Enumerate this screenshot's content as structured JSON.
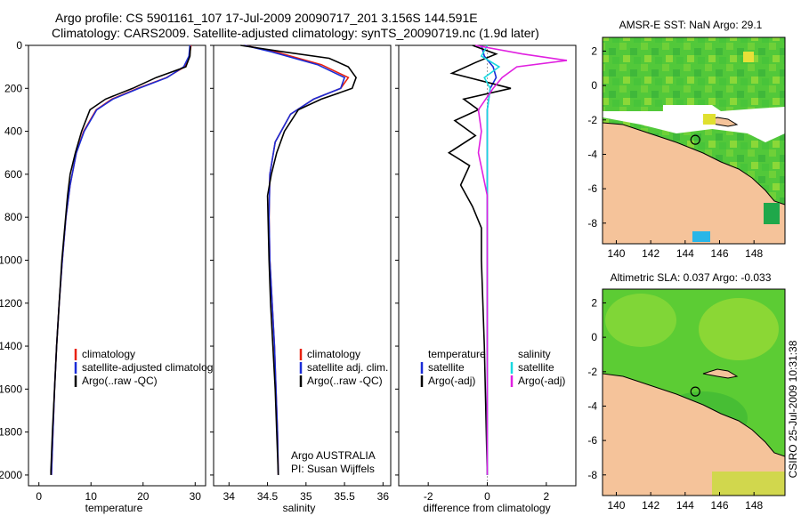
{
  "header": {
    "line1": "Argo profile: CS 5901161_107 17-Jul-2009 20090717_201 3.156S 144.591E",
    "line2": "Climatology: CARS2009. Satellite-adjusted climatology: synTS_20090719.nc (1.9d later)"
  },
  "colors": {
    "climatology": "#e8210f",
    "satellite": "#1a2cd6",
    "argo": "#000000",
    "salinity_satellite": "#18d8e0",
    "salinity_argo": "#e020e0",
    "land": "#f5c39a",
    "sea_green": "#2fbf2f"
  },
  "side": {
    "sst_title": "AMSR-E SST: NaN Argo: 29.1",
    "sla_title": "Altimetric SLA: 0.037 Argo: -0.033",
    "csiro_stamp": "CSIRO 25-Jul-2009 10:31:38"
  },
  "legends": {
    "temperature": [
      "climatology",
      "satellite-adjusted climatology",
      "Argo(..raw -QC)"
    ],
    "salinity": [
      "climatology",
      "satellite adj. clim.",
      "Argo(..raw -QC)"
    ],
    "diff_t_header": "temperature",
    "diff_s_header": "salinity",
    "diff_t": [
      "satellite",
      "Argo(-adj)"
    ],
    "diff_s": [
      "satellite",
      "Argo(-adj)"
    ]
  },
  "credit": {
    "line1": "Argo AUSTRALIA",
    "line2": "PI: Susan Wijffels"
  },
  "chart_data": [
    {
      "type": "line",
      "panel": "temperature",
      "xlabel": "temperature",
      "ylabel": "",
      "xlim": [
        -2,
        32
      ],
      "ylim": [
        2050,
        0
      ],
      "xticks": [
        0,
        10,
        20,
        30
      ],
      "yticks": [
        0,
        200,
        400,
        600,
        800,
        1000,
        1200,
        1400,
        1600,
        1800,
        2000
      ],
      "series": [
        {
          "name": "climatology",
          "color_key": "climatology",
          "x": [
            29.2,
            28.9,
            28.0,
            24.5,
            19.0,
            14.0,
            11.0,
            8.6,
            7.2,
            6.0,
            5.2,
            4.5,
            3.9,
            3.4,
            3.0,
            2.7,
            2.4
          ],
          "y": [
            0,
            50,
            100,
            150,
            200,
            250,
            300,
            400,
            500,
            650,
            800,
            1000,
            1200,
            1400,
            1600,
            1800,
            2000
          ]
        },
        {
          "name": "satellite-adjusted climatology",
          "color_key": "satellite",
          "x": [
            29.0,
            28.8,
            27.8,
            24.6,
            19.2,
            14.2,
            11.1,
            8.7,
            7.2,
            6.0,
            5.2,
            4.5,
            3.9,
            3.4,
            3.0,
            2.7,
            2.4
          ],
          "y": [
            0,
            50,
            100,
            150,
            200,
            250,
            300,
            400,
            500,
            650,
            800,
            1000,
            1200,
            1400,
            1600,
            1800,
            2000
          ]
        },
        {
          "name": "Argo(..raw -QC)",
          "color_key": "argo",
          "x": [
            29.1,
            29.0,
            28.2,
            22.5,
            18.0,
            12.8,
            9.8,
            8.2,
            7.0,
            6.0,
            5.5,
            4.4,
            3.9,
            3.4,
            3.0,
            2.6,
            2.3,
            2.3
          ],
          "y": [
            5,
            50,
            100,
            150,
            200,
            250,
            300,
            400,
            500,
            600,
            700,
            1000,
            1200,
            1400,
            1600,
            1800,
            1980,
            2000
          ]
        }
      ]
    },
    {
      "type": "line",
      "panel": "salinity",
      "xlabel": "salinity",
      "ylabel": "",
      "xlim": [
        33.8,
        36.1
      ],
      "ylim": [
        2050,
        0
      ],
      "xticks": [
        34,
        34.5,
        35,
        35.5,
        36
      ],
      "yticks": [
        0,
        200,
        400,
        600,
        800,
        1000,
        1200,
        1400,
        1600,
        1800,
        2000
      ],
      "series": [
        {
          "name": "climatology",
          "color_key": "climatology",
          "x": [
            34.2,
            34.6,
            35.2,
            35.55,
            35.45,
            35.1,
            34.8,
            34.6,
            34.53,
            34.52,
            34.53,
            34.56,
            34.59,
            34.61,
            34.63,
            34.64
          ],
          "y": [
            0,
            30,
            90,
            150,
            200,
            250,
            320,
            450,
            600,
            800,
            1000,
            1200,
            1400,
            1600,
            1800,
            2000
          ]
        },
        {
          "name": "satellite adj. clim.",
          "color_key": "satellite",
          "x": [
            34.2,
            34.55,
            35.15,
            35.5,
            35.45,
            35.1,
            34.8,
            34.6,
            34.53,
            34.52,
            34.53,
            34.56,
            34.59,
            34.61,
            34.63,
            34.64
          ],
          "y": [
            0,
            30,
            90,
            150,
            200,
            250,
            320,
            450,
            600,
            800,
            1000,
            1200,
            1400,
            1600,
            1800,
            2000
          ]
        },
        {
          "name": "Argo(..raw -QC)",
          "color_key": "argo",
          "x": [
            34.15,
            34.7,
            35.3,
            35.55,
            35.65,
            35.6,
            35.2,
            34.9,
            34.72,
            34.62,
            34.55,
            34.5,
            34.52,
            34.54,
            34.57,
            34.6,
            34.62,
            34.64
          ],
          "y": [
            0,
            30,
            60,
            100,
            150,
            200,
            250,
            300,
            400,
            500,
            600,
            700,
            1000,
            1200,
            1400,
            1600,
            1800,
            2000
          ]
        }
      ]
    },
    {
      "type": "line",
      "panel": "difference",
      "xlabel": "difference from climatology",
      "ylabel": "",
      "xlim": [
        -3.0,
        3.0
      ],
      "ylim": [
        2050,
        0
      ],
      "xticks": [
        -2,
        0,
        2
      ],
      "yticks": [
        0,
        200,
        400,
        600,
        800,
        1000,
        1200,
        1400,
        1600,
        1800,
        2000
      ],
      "series": [
        {
          "name": "temperature satellite",
          "color_key": "satellite",
          "x": [
            -0.2,
            -0.1,
            0.2,
            0.3,
            0.1,
            0.0,
            0.0,
            0.0,
            0.0,
            0.0,
            0.0
          ],
          "y": [
            0,
            50,
            100,
            150,
            200,
            300,
            500,
            800,
            1200,
            1600,
            2000
          ]
        },
        {
          "name": "temperature Argo(-adj)",
          "color_key": "argo",
          "x": [
            -0.5,
            0.3,
            -0.4,
            -1.2,
            0.8,
            -0.8,
            -0.3,
            -1.1,
            -0.4,
            -1.3,
            -0.6,
            -0.9,
            -0.5,
            -0.2,
            -0.2,
            -0.1,
            0.0
          ],
          "y": [
            0,
            40,
            80,
            130,
            200,
            250,
            300,
            350,
            420,
            500,
            560,
            650,
            750,
            850,
            1000,
            1400,
            2000
          ]
        },
        {
          "name": "salinity satellite",
          "color_key": "salinity_satellite",
          "x": [
            0.0,
            -0.2,
            0.4,
            -0.1,
            0.1,
            0.0,
            0.0,
            0.0,
            0.0,
            0.0
          ],
          "y": [
            0,
            50,
            100,
            150,
            200,
            300,
            600,
            1000,
            1500,
            2000
          ]
        },
        {
          "name": "salinity Argo(-adj)",
          "color_key": "salinity_argo",
          "x": [
            -0.4,
            1.2,
            2.7,
            1.0,
            0.5,
            0.2,
            -0.3,
            -0.2,
            -0.3,
            0.0,
            0.0,
            0.0
          ],
          "y": [
            0,
            40,
            70,
            100,
            150,
            200,
            300,
            400,
            500,
            700,
            1200,
            2000
          ]
        }
      ]
    }
  ],
  "maps": {
    "xticks": [
      140,
      142,
      144,
      146,
      148
    ],
    "yticks": [
      2,
      0,
      -2,
      -4,
      -6,
      -8
    ],
    "xlim": [
      139.2,
      149.8
    ],
    "ylim": [
      -9.2,
      2.8
    ],
    "argo_point": {
      "lon": 144.591,
      "lat": -3.156
    }
  }
}
